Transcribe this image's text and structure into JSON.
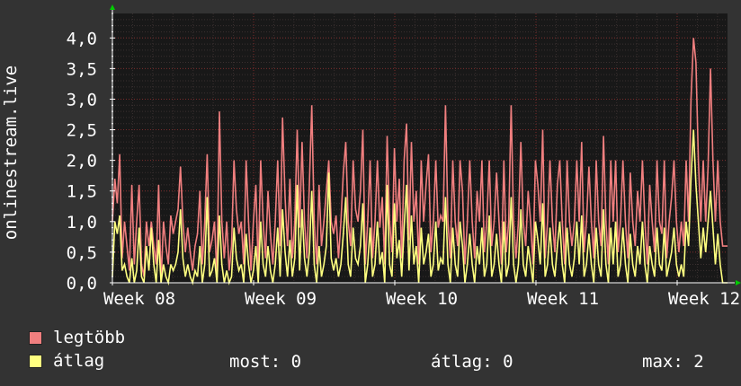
{
  "chart_data": {
    "type": "line",
    "ylabel": "onlinestream.live",
    "ylim": [
      0,
      4.4
    ],
    "yticks": [
      "0,0",
      "0,5",
      "1,0",
      "1,5",
      "2,0",
      "2,5",
      "3,0",
      "3,5",
      "4,0"
    ],
    "ytick_values": [
      0,
      0.5,
      1.0,
      1.5,
      2.0,
      2.5,
      3.0,
      3.5,
      4.0
    ],
    "xticks": [
      "Week 08",
      "Week 09",
      "Week 10",
      "Week 11",
      "Week 12"
    ],
    "grid": true,
    "series": [
      {
        "name": "legtöbb",
        "color": "#f07f7f",
        "values": [
          1.0,
          1.7,
          1.3,
          2.1,
          0.4,
          1.0,
          0.6,
          0.2,
          1.6,
          0.3,
          1.0,
          1.6,
          0.3,
          0.1,
          1.0,
          0.6,
          1.0,
          0.6,
          0.3,
          1.6,
          0.0,
          1.0,
          0.6,
          0.3,
          1.1,
          0.8,
          1.0,
          1.2,
          1.9,
          1.0,
          0.5,
          0.9,
          0.5,
          0.2,
          0.6,
          0.8,
          1.5,
          0.3,
          1.0,
          2.1,
          0.5,
          0.7,
          1.0,
          0.1,
          2.8,
          1.0,
          0.4,
          1.0,
          0.2,
          0.6,
          2.0,
          1.2,
          0.8,
          1.0,
          0.3,
          2.0,
          1.0,
          0.2,
          1.0,
          1.6,
          0.2,
          2.0,
          1.0,
          0.4,
          1.5,
          0.8,
          0.3,
          1.0,
          2.0,
          0.6,
          2.7,
          1.4,
          0.6,
          1.7,
          0.4,
          1.0,
          2.5,
          0.9,
          2.3,
          1.0,
          0.4,
          1.6,
          2.9,
          1.0,
          0.3,
          1.6,
          0.6,
          1.0,
          1.5,
          2.0,
          1.0,
          0.8,
          1.1,
          0.4,
          1.0,
          1.8,
          2.3,
          1.0,
          0.6,
          2.0,
          1.2,
          1.0,
          1.5,
          2.5,
          0.3,
          1.0,
          2.0,
          0.4,
          1.0,
          2.0,
          0.9,
          1.4,
          0.3,
          2.4,
          1.0,
          0.5,
          2.2,
          1.0,
          1.7,
          0.4,
          2.0,
          2.6,
          0.7,
          2.3,
          1.0,
          1.5,
          0.3,
          2.0,
          1.0,
          1.6,
          2.1,
          0.5,
          1.0,
          2.0,
          0.9,
          1.1,
          1.0,
          2.9,
          1.0,
          0.4,
          2.0,
          1.0,
          0.6,
          2.0,
          1.5,
          0.3,
          1.0,
          2.0,
          1.0,
          0.4,
          1.5,
          1.0,
          2.0,
          0.5,
          1.0,
          2.0,
          0.6,
          1.0,
          1.8,
          1.0,
          0.3,
          2.0,
          0.5,
          1.0,
          2.9,
          1.0,
          0.4,
          1.0,
          2.3,
          1.0,
          0.6,
          1.5,
          1.0,
          0.3,
          2.0,
          1.6,
          1.0,
          2.5,
          0.4,
          1.0,
          2.0,
          1.0,
          0.5,
          1.6,
          2.0,
          1.0,
          0.3,
          2.0,
          1.0,
          0.6,
          1.0,
          2.0,
          1.0,
          2.3,
          0.5,
          1.0,
          1.9,
          1.0,
          0.4,
          2.0,
          1.0,
          0.6,
          2.4,
          1.0,
          0.3,
          2.0,
          1.0,
          2.0,
          0.5,
          1.0,
          2.0,
          1.0,
          0.4,
          1.8,
          1.0,
          0.6,
          1.5,
          1.0,
          2.0,
          1.0,
          0.3,
          1.6,
          1.0,
          0.5,
          2.0,
          1.0,
          0.8,
          2.0,
          0.4,
          1.0,
          1.4,
          2.0,
          1.0,
          0.5,
          1.0,
          0.6,
          2.0,
          1.0,
          3.0,
          4.0,
          3.6,
          2.0,
          1.0,
          2.0,
          1.0,
          1.9,
          3.5,
          2.0,
          1.0,
          2.0,
          1.0,
          0.6,
          0.6,
          0.6
        ]
      },
      {
        "name": "átlag",
        "color": "#ffff80",
        "values": [
          0.1,
          1.0,
          0.8,
          1.1,
          0.2,
          0.3,
          0.1,
          0.0,
          0.4,
          0.0,
          0.2,
          0.9,
          0.1,
          0.0,
          0.6,
          0.2,
          0.9,
          0.3,
          0.0,
          0.7,
          0.0,
          0.3,
          0.1,
          0.0,
          0.3,
          0.2,
          0.3,
          0.5,
          1.2,
          0.4,
          0.1,
          0.3,
          0.1,
          0.0,
          0.2,
          0.1,
          0.6,
          0.0,
          0.3,
          1.4,
          0.1,
          0.2,
          0.4,
          0.0,
          1.1,
          0.3,
          0.0,
          0.2,
          0.0,
          0.1,
          0.9,
          0.4,
          0.2,
          0.3,
          0.0,
          0.8,
          0.3,
          0.0,
          0.2,
          0.6,
          0.0,
          1.0,
          0.3,
          0.1,
          0.6,
          0.2,
          0.0,
          0.3,
          0.9,
          0.1,
          1.2,
          0.5,
          0.1,
          0.7,
          0.1,
          0.4,
          1.6,
          0.2,
          1.2,
          0.4,
          0.1,
          0.5,
          1.5,
          0.3,
          0.0,
          0.6,
          0.1,
          0.3,
          0.6,
          1.8,
          0.4,
          0.2,
          0.4,
          0.1,
          0.3,
          0.8,
          1.4,
          0.3,
          0.1,
          0.9,
          0.4,
          0.3,
          0.6,
          1.3,
          0.0,
          0.3,
          0.9,
          0.1,
          0.3,
          1.0,
          0.3,
          0.5,
          0.0,
          1.6,
          0.3,
          0.1,
          1.3,
          0.4,
          0.7,
          0.1,
          0.9,
          1.6,
          0.2,
          1.1,
          0.3,
          0.6,
          0.0,
          0.9,
          0.3,
          0.5,
          0.8,
          0.1,
          0.3,
          1.0,
          0.2,
          0.4,
          0.3,
          1.4,
          0.3,
          0.0,
          0.9,
          0.3,
          0.1,
          1.0,
          0.6,
          0.0,
          0.3,
          0.8,
          0.3,
          0.0,
          0.6,
          0.3,
          0.9,
          0.1,
          0.3,
          1.1,
          0.1,
          0.3,
          0.8,
          0.3,
          0.0,
          1.0,
          0.1,
          0.3,
          1.4,
          0.3,
          0.0,
          0.3,
          1.2,
          0.3,
          0.1,
          0.6,
          0.3,
          0.0,
          1.0,
          0.7,
          0.3,
          1.3,
          0.1,
          0.3,
          0.9,
          0.3,
          0.1,
          0.6,
          1.0,
          0.3,
          0.0,
          0.9,
          0.3,
          0.1,
          0.4,
          1.0,
          0.3,
          1.1,
          0.1,
          0.3,
          0.8,
          0.3,
          0.0,
          0.9,
          0.3,
          0.1,
          1.2,
          0.3,
          0.0,
          0.9,
          0.3,
          1.0,
          0.1,
          0.3,
          0.9,
          0.3,
          0.0,
          0.8,
          0.3,
          0.1,
          0.6,
          0.3,
          1.0,
          0.3,
          0.0,
          0.6,
          0.3,
          0.1,
          0.9,
          0.3,
          0.2,
          0.9,
          0.1,
          0.3,
          0.5,
          0.9,
          0.3,
          0.1,
          0.3,
          0.1,
          1.0,
          0.6,
          1.7,
          2.5,
          1.6,
          1.0,
          0.4,
          0.9,
          0.5,
          1.0,
          1.5,
          0.9,
          0.3,
          0.8,
          0.3,
          0.0,
          0.0,
          0.0
        ]
      }
    ]
  },
  "stats": {
    "now_label": "most: 0",
    "avg_label": "átlag: 0",
    "max_label": "max: 2"
  }
}
